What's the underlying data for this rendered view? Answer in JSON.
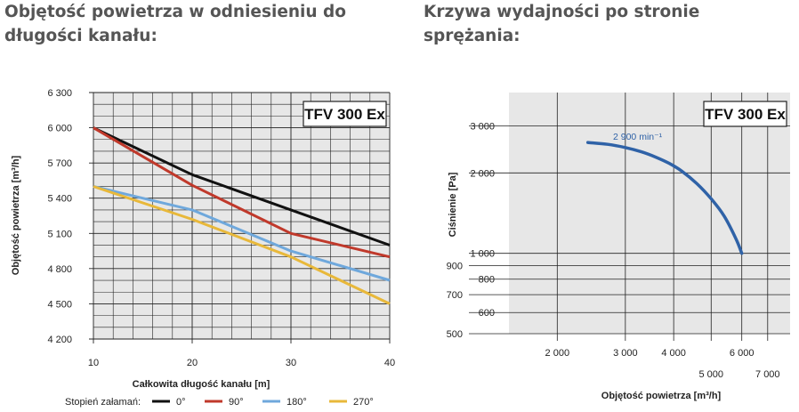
{
  "headings": {
    "left": "Objętość powietrza w odniesieniu do długości kanału:",
    "right": "Krzywa wydajności po stronie sprężania:"
  },
  "chart_data": [
    {
      "type": "line",
      "title": "",
      "badge": "TFV 300 Ex",
      "xlabel": "Całkowita długość kanału [m]",
      "ylabel": "Objętość powietrza [m³/h]",
      "xlim": [
        10,
        40
      ],
      "ylim": [
        4200,
        6300
      ],
      "x_ticks": [
        10,
        20,
        30,
        40
      ],
      "x_tick_labels": [
        "10",
        "20",
        "30",
        "40"
      ],
      "y_ticks": [
        4200,
        4500,
        4800,
        5100,
        5400,
        5700,
        6000,
        6300
      ],
      "y_tick_labels": [
        "4 200",
        "4 500",
        "4 800",
        "5 100",
        "5 400",
        "5 700",
        "6 000",
        "6 300"
      ],
      "grid": true,
      "legend_title": "Stopień załamań:",
      "legend_position": "bottom",
      "series": [
        {
          "name": "0°",
          "color": "#111111",
          "x": [
            10,
            20,
            30,
            40
          ],
          "y": [
            6000,
            5600,
            5300,
            5000
          ]
        },
        {
          "name": "90°",
          "color": "#c0392b",
          "x": [
            10,
            20,
            30,
            40
          ],
          "y": [
            6000,
            5510,
            5100,
            4900
          ]
        },
        {
          "name": "180°",
          "color": "#6fa8dc",
          "x": [
            10,
            20,
            30,
            40
          ],
          "y": [
            5500,
            5300,
            4950,
            4700
          ]
        },
        {
          "name": "270°",
          "color": "#e8b83a",
          "x": [
            10,
            20,
            30,
            40
          ],
          "y": [
            5500,
            5220,
            4900,
            4500
          ]
        }
      ]
    },
    {
      "type": "line",
      "title": "",
      "badge": "TFV 300 Ex",
      "xlabel": "Objętość powietrza [m³/h]",
      "ylabel": "Ciśnienie [Pa]",
      "x_scale": "log",
      "y_scale": "log",
      "xlim": [
        1500,
        8000
      ],
      "ylim": [
        500,
        4000
      ],
      "x_ticks": [
        2000,
        3000,
        4000,
        5000,
        6000,
        7000
      ],
      "x_tick_labels": [
        "2 000",
        "3 000",
        "4 000",
        "5 000",
        "6 000",
        "7 000"
      ],
      "y_ticks": [
        500,
        600,
        700,
        800,
        900,
        1000,
        2000,
        3000
      ],
      "y_tick_labels": [
        "500",
        "600",
        "700",
        "800",
        "900",
        "1 000",
        "2 000",
        "3 000"
      ],
      "grid": true,
      "series": [
        {
          "name": "2 900 min⁻¹",
          "color": "#2f62a7",
          "x": [
            2400,
            2700,
            3000,
            3300,
            3600,
            3900,
            4200,
            4600,
            5000,
            5400,
            5800,
            6000
          ],
          "y": [
            2600,
            2560,
            2490,
            2400,
            2290,
            2170,
            2030,
            1820,
            1600,
            1380,
            1130,
            1000
          ]
        }
      ]
    }
  ]
}
